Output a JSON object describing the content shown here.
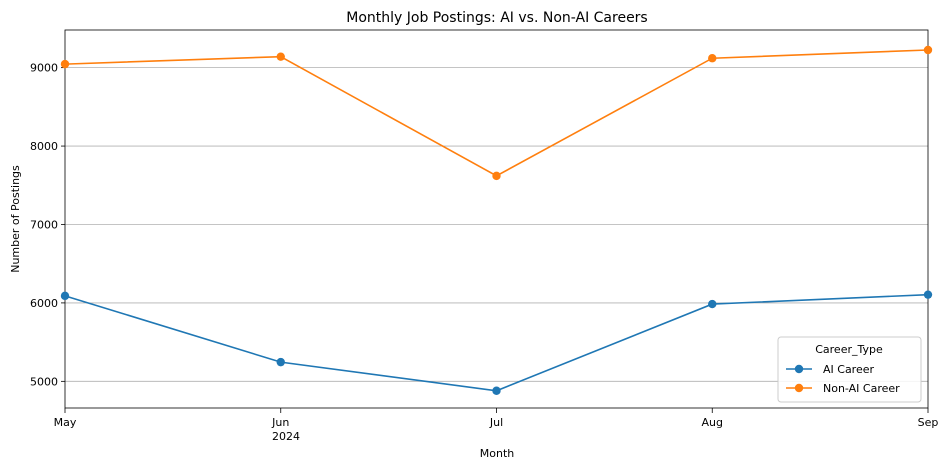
{
  "chart_data": {
    "type": "line",
    "title": "Monthly Job Postings: AI vs. Non-AI Careers",
    "xlabel": "Month",
    "ylabel": "Number of Postings",
    "categories": [
      "May",
      "Jun",
      "Jul",
      "Aug",
      "Sep"
    ],
    "x_year_label": "2024",
    "ylim": [
      4660,
      9480
    ],
    "y_ticks": [
      5000,
      6000,
      7000,
      8000,
      9000
    ],
    "grid": "horizontal",
    "legend": {
      "title": "Career_Type",
      "placement": "lower-right"
    },
    "series": [
      {
        "name": "AI Career",
        "color": "#1f77b4",
        "values": [
          6090,
          5245,
          4880,
          5985,
          6105
        ]
      },
      {
        "name": "Non-AI Career",
        "color": "#ff7f0e",
        "values": [
          9045,
          9140,
          7620,
          9120,
          9225
        ]
      }
    ]
  }
}
